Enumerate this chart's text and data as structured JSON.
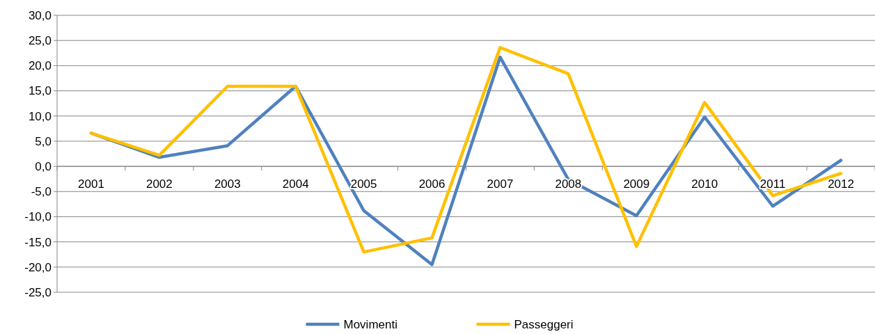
{
  "chart_data": {
    "type": "line",
    "categories": [
      "2001",
      "2002",
      "2003",
      "2004",
      "2005",
      "2006",
      "2007",
      "2008",
      "2009",
      "2010",
      "2011",
      "2012"
    ],
    "series": [
      {
        "name": "Movimenti",
        "color": "#4f81bd",
        "values": [
          6.6,
          1.8,
          4.1,
          15.9,
          -8.8,
          -19.5,
          21.7,
          -2.6,
          -9.8,
          9.8,
          -7.9,
          1.2
        ]
      },
      {
        "name": "Passeggeri",
        "color": "#ffc000",
        "values": [
          6.6,
          2.2,
          15.9,
          15.9,
          -17.0,
          -14.2,
          23.6,
          18.4,
          -15.9,
          12.7,
          -5.8,
          -1.4
        ]
      }
    ],
    "ylim": [
      -25,
      30
    ],
    "yticks": [
      {
        "value": -25,
        "label": "-25,0"
      },
      {
        "value": -20,
        "label": "-20,0"
      },
      {
        "value": -15,
        "label": "-15,0"
      },
      {
        "value": -10,
        "label": "-10,0"
      },
      {
        "value": -5,
        "label": "-5,0"
      },
      {
        "value": 0,
        "label": "0,0"
      },
      {
        "value": 5,
        "label": "5,0"
      },
      {
        "value": 10,
        "label": "10,0"
      },
      {
        "value": 15,
        "label": "15,0"
      },
      {
        "value": 20,
        "label": "20,0"
      },
      {
        "value": 25,
        "label": "25,0"
      },
      {
        "value": 30,
        "label": "30,0"
      }
    ],
    "grid": "y",
    "legend": "bottom",
    "marker": "none",
    "line_style": "solid"
  }
}
